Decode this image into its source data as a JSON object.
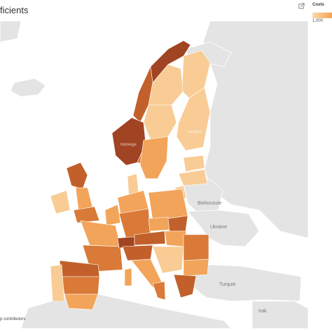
{
  "title": "ficients",
  "legend": {
    "title": "Costs",
    "value_label": "1,000",
    "colors": [
      "#fbd9ae",
      "#f4a151"
    ]
  },
  "icons": {
    "external": "external-link-icon"
  },
  "map_labels": {
    "finland": "Finland",
    "belarus": "Bielorussie",
    "ukraine": "Ukraine",
    "turkey": "Turquie",
    "iraq": "Irak",
    "norway": "Norvège"
  },
  "attribution": "p contributors",
  "palette": {
    "sea": "#ffffff",
    "land": "#e4e4e4",
    "light": "#f9cc95",
    "mid": "#f2a45a",
    "dark": "#d97a38",
    "darker": "#c2602b",
    "darkest": "#a14423"
  }
}
